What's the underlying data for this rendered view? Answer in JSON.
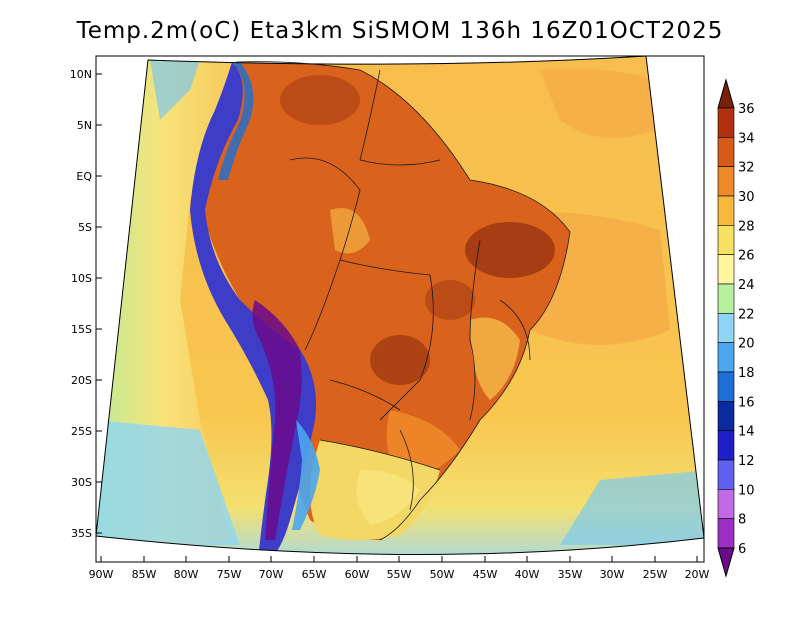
{
  "title": "Temp.2m(oC) Eta3km SiSMOM 136h 16Z01OCT2025",
  "latitude_labels": [
    "10N",
    "5N",
    "EQ",
    "5S",
    "10S",
    "15S",
    "20S",
    "25S",
    "30S",
    "35S"
  ],
  "longitude_labels": [
    "90W",
    "85W",
    "80W",
    "75W",
    "70W",
    "65W",
    "60W",
    "55W",
    "50W",
    "45W",
    "40W",
    "35W",
    "30W",
    "25W",
    "20W"
  ],
  "colorbar": {
    "labels": [
      "6",
      "8",
      "10",
      "12",
      "14",
      "16",
      "18",
      "20",
      "22",
      "24",
      "26",
      "28",
      "30",
      "32",
      "34",
      "36"
    ],
    "colors": [
      "#6a0a8c",
      "#9b2fc2",
      "#c06ae8",
      "#6060ee",
      "#1f1fc8",
      "#0a2aa0",
      "#1b6fd6",
      "#4aa6ee",
      "#8fd4f5",
      "#b8f0a0",
      "#fff6a0",
      "#f8e060",
      "#f7b840",
      "#ee8a2a",
      "#d85a18",
      "#b03010",
      "#7a2008"
    ]
  },
  "regions": {
    "ocean_warm": "#f6b84a",
    "interior_hot": "#d9621c",
    "andes_cold": "#3d3dc8",
    "southern_cool": "#f3e27a"
  }
}
